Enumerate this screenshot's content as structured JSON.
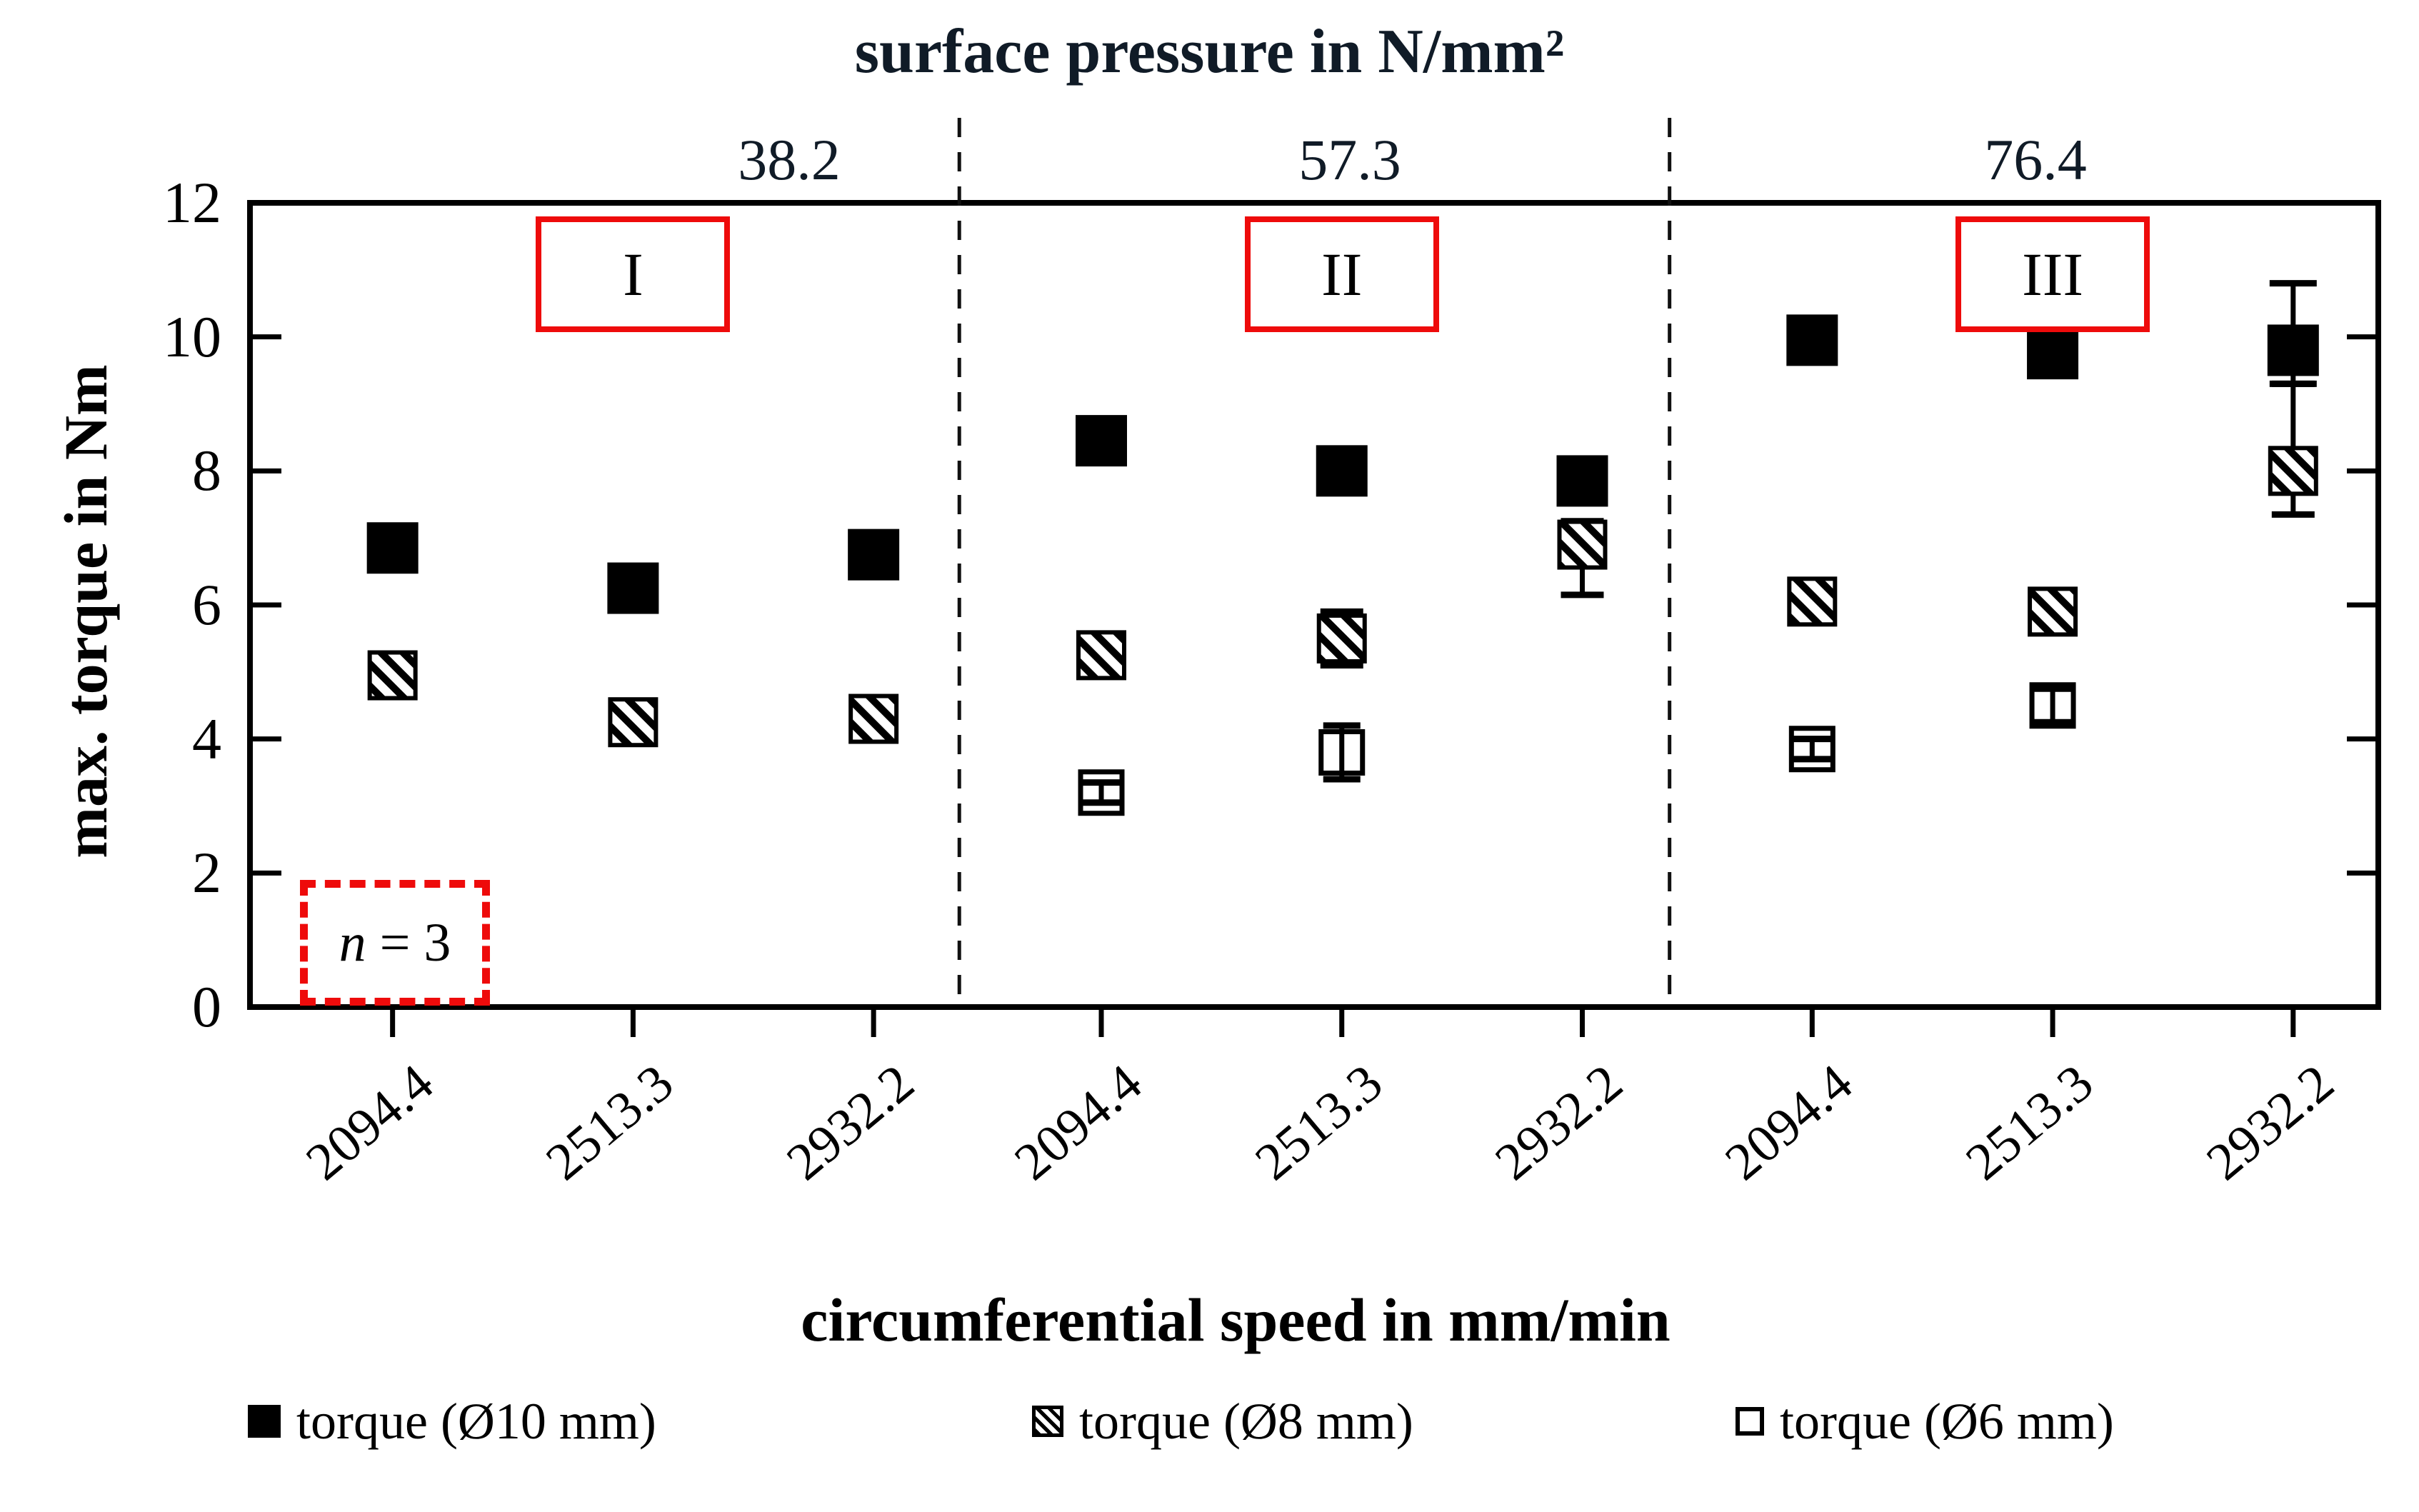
{
  "colors": {
    "accent_red": "#ee0b0b",
    "header_text": "#101b27",
    "axis_black": "#000000",
    "background": "#ffffff"
  },
  "chart_data": {
    "type": "scatter",
    "top_axis_title": "surface pressure in N/mm²",
    "xlabel": "circumferential speed in mm/min",
    "ylabel": "max. torque in Nm",
    "ylim": [
      0,
      12
    ],
    "y_ticks": [
      0,
      2,
      4,
      6,
      8,
      10,
      12
    ],
    "grid": false,
    "legend_position": "bottom",
    "annotation": {
      "italic": "n",
      "rest": " = 3"
    },
    "legend": [
      {
        "label": "torque (Ø10 mm)",
        "marker": "filled"
      },
      {
        "label": "torque (Ø8 mm)",
        "marker": "hatched"
      },
      {
        "label": "torque (Ø6 mm)",
        "marker": "open"
      }
    ],
    "groups": [
      {
        "id": "I",
        "pressure": "38.2",
        "points": [
          {
            "speed": "2094.4",
            "d10": {
              "v": 6.85
            },
            "d8": {
              "v": 4.95
            },
            "d6": null
          },
          {
            "speed": "2513.3",
            "d10": {
              "v": 6.25
            },
            "d8": {
              "v": 4.25
            },
            "d6": null
          },
          {
            "speed": "2932.2",
            "d10": {
              "v": 6.75
            },
            "d8": {
              "v": 4.3
            },
            "d6": null
          }
        ]
      },
      {
        "id": "II",
        "pressure": "57.3",
        "points": [
          {
            "speed": "2094.4",
            "d10": {
              "v": 8.45
            },
            "d8": {
              "v": 5.25
            },
            "d6": {
              "v": 3.2,
              "e_up": 0.15,
              "e_dn": 0.15
            }
          },
          {
            "speed": "2513.3",
            "d10": {
              "v": 8.0
            },
            "d8": {
              "v": 5.5,
              "e_up": 0.4,
              "e_dn": 0.4
            },
            "d6": {
              "v": 3.8,
              "e_up": 0.4,
              "e_dn": 0.4
            }
          },
          {
            "speed": "2932.2",
            "d10": {
              "v": 7.85
            },
            "d8": {
              "v": 6.9,
              "e_up": 0.35,
              "e_dn": 0.75
            },
            "d6": null
          }
        ]
      },
      {
        "id": "III",
        "pressure": "76.4",
        "points": [
          {
            "speed": "2094.4",
            "d10": {
              "v": 9.95
            },
            "d8": {
              "v": 6.05
            },
            "d6": {
              "v": 3.85,
              "e_up": 0.15,
              "e_dn": 0.15
            }
          },
          {
            "speed": "2513.3",
            "d10": {
              "v": 9.75
            },
            "d8": {
              "v": 5.9
            },
            "d6": {
              "v": 4.5,
              "e_up": 0.25,
              "e_dn": 0.25
            }
          },
          {
            "speed": "2932.2",
            "d10": {
              "v": 9.8,
              "e_up": 1.0,
              "e_dn": 0.5
            },
            "d8": {
              "v": 8.0,
              "e_up": 1.3,
              "e_dn": 0.65
            },
            "d6": null
          }
        ]
      }
    ]
  }
}
